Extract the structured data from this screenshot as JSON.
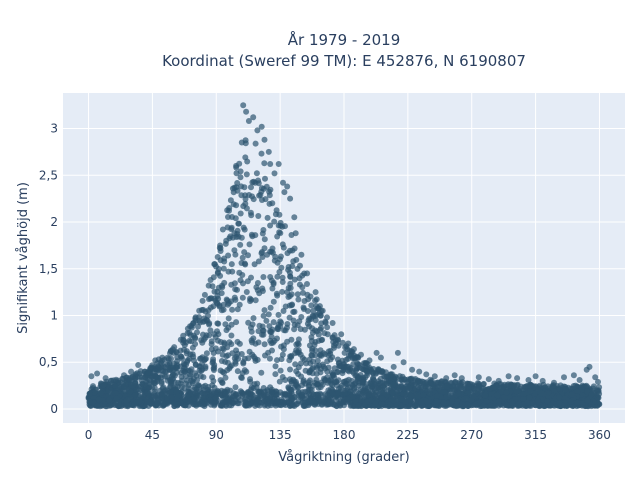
{
  "colors": {
    "plot_bg": "#E5ECF6",
    "grid": "#ffffff",
    "marker": "#2E5570",
    "text": "#2a3f5f"
  },
  "chart_data": {
    "type": "scatter",
    "title": "År 1979 - 2019",
    "subtitle": "Koordinat (Sweref 99 TM): E 452876, N 6190807",
    "xlabel": "Vågriktning (grader)",
    "ylabel": "Signifikant våghöjd (m)",
    "xlim": [
      -18,
      378
    ],
    "ylim": [
      -0.15,
      3.38
    ],
    "xticks": [
      0,
      45,
      90,
      135,
      180,
      225,
      270,
      315,
      360
    ],
    "xtick_labels": [
      "0",
      "45",
      "90",
      "135",
      "180",
      "225",
      "270",
      "315",
      "360"
    ],
    "yticks": [
      0,
      0.5,
      1,
      1.5,
      2,
      2.5,
      3
    ],
    "ytick_labels": [
      "0",
      "0,5",
      "1",
      "1,5",
      "2",
      "2,5",
      "3"
    ],
    "grid": true,
    "series": [
      {
        "envelope": [
          [
            0,
            0.25
          ],
          [
            15,
            0.3
          ],
          [
            30,
            0.36
          ],
          [
            45,
            0.48
          ],
          [
            60,
            0.66
          ],
          [
            70,
            0.85
          ],
          [
            80,
            1.15
          ],
          [
            90,
            1.65
          ],
          [
            95,
            1.95
          ],
          [
            100,
            2.3
          ],
          [
            105,
            2.7
          ],
          [
            110,
            3.05
          ],
          [
            115,
            2.95
          ],
          [
            120,
            2.9
          ],
          [
            125,
            2.55
          ],
          [
            130,
            2.3
          ],
          [
            135,
            2.15
          ],
          [
            140,
            2.0
          ],
          [
            150,
            1.55
          ],
          [
            160,
            1.2
          ],
          [
            170,
            0.9
          ],
          [
            180,
            0.7
          ],
          [
            190,
            0.55
          ],
          [
            200,
            0.45
          ],
          [
            225,
            0.33
          ],
          [
            270,
            0.28
          ],
          [
            315,
            0.26
          ],
          [
            360,
            0.25
          ]
        ],
        "outliers": [
          [
            109,
            3.25
          ],
          [
            111,
            3.18
          ],
          [
            116,
            3.12
          ],
          [
            113,
            3.08
          ],
          [
            122,
            3.02
          ],
          [
            119,
            2.98
          ],
          [
            124,
            2.88
          ],
          [
            127,
            2.75
          ],
          [
            131,
            2.52
          ],
          [
            137,
            2.42
          ],
          [
            140,
            2.38
          ],
          [
            142,
            2.25
          ],
          [
            134,
            2.62
          ],
          [
            145,
            2.05
          ],
          [
            108,
            2.85
          ],
          [
            104,
            2.6
          ],
          [
            150,
            1.65
          ],
          [
            154,
            1.45
          ],
          [
            160,
            1.25
          ],
          [
            165,
            1.05
          ],
          [
            97,
            1.8
          ],
          [
            93,
            1.72
          ],
          [
            89,
            1.55
          ],
          [
            86,
            1.38
          ],
          [
            82,
            1.22
          ],
          [
            78,
            1.05
          ],
          [
            74,
            0.92
          ],
          [
            70,
            0.86
          ],
          [
            65,
            0.74
          ],
          [
            58,
            0.62
          ],
          [
            52,
            0.55
          ],
          [
            47,
            0.52
          ],
          [
            35,
            0.47
          ],
          [
            30,
            0.4
          ],
          [
            25,
            0.36
          ],
          [
            2,
            0.35
          ],
          [
            6,
            0.38
          ],
          [
            12,
            0.33
          ],
          [
            172,
            0.92
          ],
          [
            178,
            0.8
          ],
          [
            183,
            0.7
          ],
          [
            187,
            0.64
          ],
          [
            192,
            0.58
          ],
          [
            198,
            0.52
          ],
          [
            203,
            0.6
          ],
          [
            206,
            0.55
          ],
          [
            215,
            0.45
          ],
          [
            222,
            0.5
          ],
          [
            228,
            0.42
          ],
          [
            233,
            0.4
          ],
          [
            238,
            0.37
          ],
          [
            244,
            0.35
          ],
          [
            252,
            0.33
          ],
          [
            258,
            0.36
          ],
          [
            263,
            0.33
          ],
          [
            275,
            0.34
          ],
          [
            282,
            0.32
          ],
          [
            289,
            0.3
          ],
          [
            296,
            0.35
          ],
          [
            302,
            0.33
          ],
          [
            310,
            0.31
          ],
          [
            315,
            0.35
          ],
          [
            320,
            0.3
          ],
          [
            328,
            0.28
          ],
          [
            335,
            0.34
          ],
          [
            342,
            0.36
          ],
          [
            346,
            0.31
          ],
          [
            351,
            0.42
          ],
          [
            353,
            0.45
          ],
          [
            357,
            0.34
          ],
          [
            359,
            0.29
          ],
          [
            218,
            0.6
          ],
          [
            168,
            0.98
          ],
          [
            163,
            1.1
          ],
          [
            146,
            1.88
          ],
          [
            138,
            2.32
          ],
          [
            128,
            2.62
          ]
        ]
      }
    ]
  }
}
